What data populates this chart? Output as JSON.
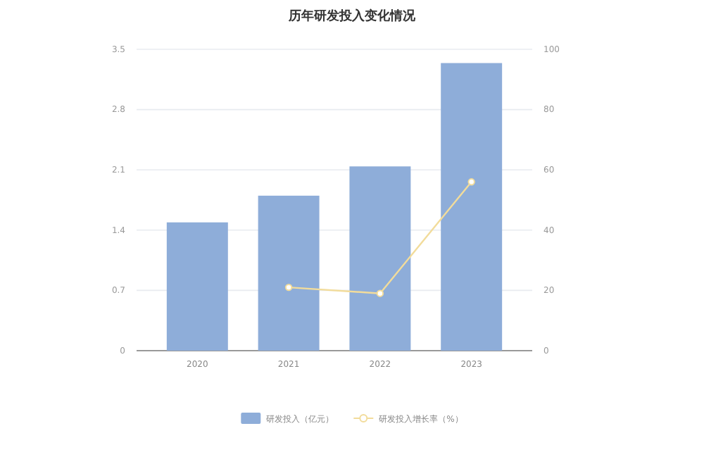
{
  "chart_data": {
    "type": "bar",
    "title": "历年研发投入变化情况",
    "categories": [
      "2020",
      "2021",
      "2022",
      "2023"
    ],
    "series": [
      {
        "name": "研发投入（亿元）",
        "color": "#8eadd9",
        "values": [
          1.49,
          1.8,
          2.14,
          3.34
        ]
      },
      {
        "name": "研发投入增长率（%）",
        "type": "line",
        "axis": "y2",
        "color": "#f2dc9b",
        "values": [
          null,
          21,
          19,
          56
        ]
      }
    ],
    "ylim": [
      0,
      3.5
    ],
    "yticks": [
      0,
      0.7,
      1.4,
      2.1,
      2.8,
      3.5
    ],
    "y2lim": [
      0,
      100
    ],
    "y2ticks": [
      0,
      20,
      40,
      60,
      80,
      100
    ],
    "grid": "y",
    "legend": "bottom",
    "marker": "circle"
  }
}
